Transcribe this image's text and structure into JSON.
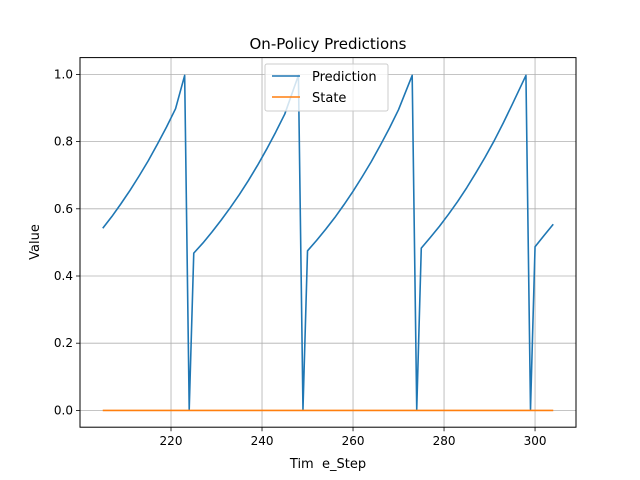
{
  "chart_data": {
    "type": "line",
    "title": "On-Policy Predictions",
    "xlabel": "Tim  e_Step",
    "ylabel": "Value",
    "xlim": [
      200,
      309
    ],
    "ylim": [
      -0.05,
      1.05
    ],
    "xticks": [
      220,
      240,
      260,
      280,
      300
    ],
    "yticks": [
      0.0,
      0.2,
      0.4,
      0.6,
      0.8,
      1.0
    ],
    "xtick_labels": [
      "220",
      "240",
      "260",
      "280",
      "300"
    ],
    "ytick_labels": [
      "0.0",
      "0.2",
      "0.4",
      "0.6",
      "0.8",
      "1.0"
    ],
    "grid": true,
    "legend_position": "top-center",
    "series": [
      {
        "name": "Prediction",
        "color": "#1f77b4",
        "x": [
          205,
          207,
          209,
          211,
          213,
          215,
          217,
          219,
          221,
          223,
          224,
          225,
          227,
          229,
          231,
          233,
          235,
          237,
          239,
          241,
          243,
          245,
          248,
          249,
          250,
          252,
          254,
          256,
          258,
          260,
          262,
          264,
          266,
          268,
          270,
          273,
          274,
          275,
          277,
          279,
          281,
          283,
          285,
          287,
          289,
          291,
          293,
          295,
          298,
          299,
          300,
          302,
          304
        ],
        "y": [
          0.542,
          0.577,
          0.615,
          0.655,
          0.698,
          0.743,
          0.792,
          0.843,
          0.898,
          0.997,
          0.003,
          0.468,
          0.498,
          0.531,
          0.566,
          0.603,
          0.642,
          0.684,
          0.729,
          0.777,
          0.828,
          0.882,
          0.997,
          0.003,
          0.475,
          0.506,
          0.539,
          0.574,
          0.612,
          0.652,
          0.695,
          0.74,
          0.789,
          0.84,
          0.895,
          0.997,
          0.003,
          0.483,
          0.515,
          0.548,
          0.584,
          0.622,
          0.663,
          0.707,
          0.753,
          0.802,
          0.855,
          0.911,
          0.997,
          0.003,
          0.487,
          0.521,
          0.554
        ]
      },
      {
        "name": "State",
        "color": "#ff7f0e",
        "x": [
          205,
          304
        ],
        "y": [
          0.0,
          0.0
        ]
      }
    ]
  }
}
